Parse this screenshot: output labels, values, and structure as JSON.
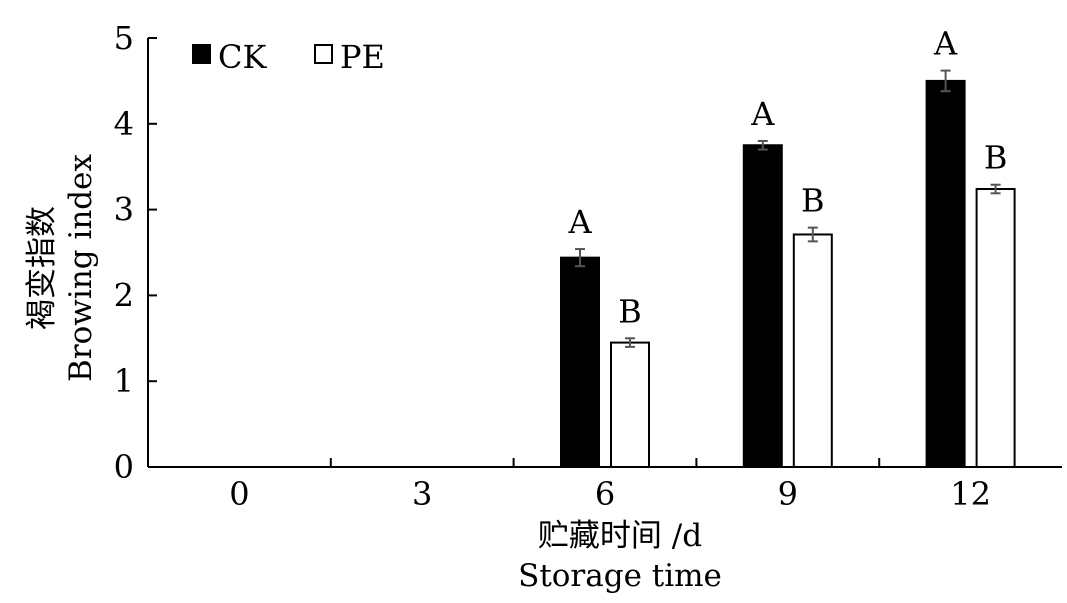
{
  "chart_data": {
    "type": "bar",
    "categories": [
      "0",
      "3",
      "6",
      "9",
      "12"
    ],
    "series": [
      {
        "name": "CK",
        "color": "#000000",
        "values": [
          0,
          0,
          2.44,
          3.75,
          4.5
        ],
        "errors": [
          0,
          0,
          0.1,
          0.05,
          0.12
        ],
        "labels": [
          "",
          "",
          "A",
          "A",
          "A"
        ]
      },
      {
        "name": "PE",
        "color": "#ffffff",
        "values": [
          0,
          0,
          1.45,
          2.71,
          3.24
        ],
        "errors": [
          0,
          0,
          0.05,
          0.08,
          0.05
        ],
        "labels": [
          "",
          "",
          "B",
          "B",
          "B"
        ]
      }
    ],
    "ylim": [
      0,
      5
    ],
    "yticks": [
      0,
      1,
      2,
      3,
      4,
      5
    ],
    "ylabel_cn": "褐变指数",
    "ylabel_en": "Browing index",
    "xlabel_cn": "贮藏时间 /d",
    "xlabel_en": "Storage time",
    "legend_position": "top-left",
    "grid": false
  }
}
